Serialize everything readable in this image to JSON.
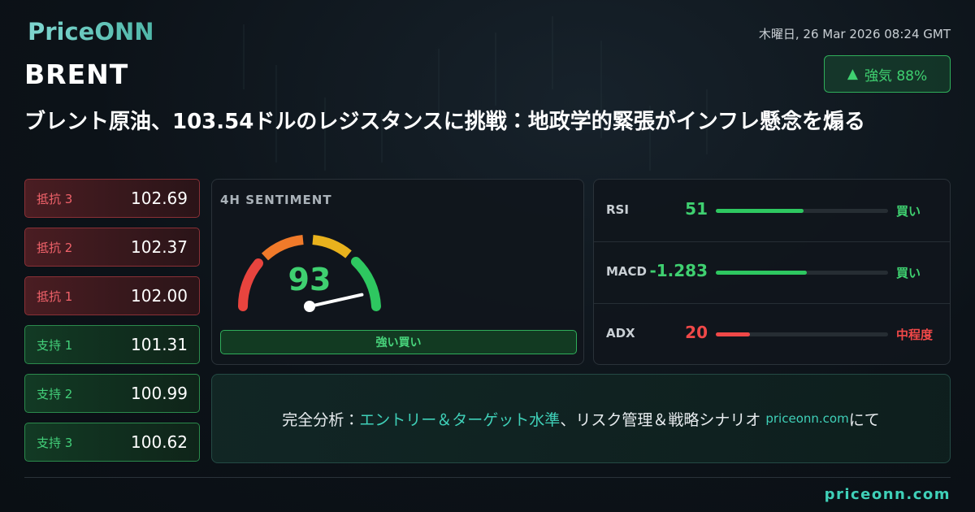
{
  "header": {
    "logo": "PriceONN",
    "date": "木曜日, 26 Mar 2026 08:24 GMT",
    "symbol": "BRENT",
    "badge": "強気 88%"
  },
  "headline": "ブレント原油、103.54ドルのレジスタンスに挑戦：地政学的緊張がインフレ懸念を煽る",
  "levels": [
    {
      "label": "抵抗 3",
      "value": "102.69",
      "kind": "resistance"
    },
    {
      "label": "抵抗 2",
      "value": "102.37",
      "kind": "resistance"
    },
    {
      "label": "抵抗 1",
      "value": "102.00",
      "kind": "resistance"
    },
    {
      "label": "支持 1",
      "value": "101.31",
      "kind": "support"
    },
    {
      "label": "支持 2",
      "value": "100.99",
      "kind": "support"
    },
    {
      "label": "支持 3",
      "value": "100.62",
      "kind": "support"
    }
  ],
  "sentiment": {
    "title": "4H SENTIMENT",
    "value": 93,
    "min": 0,
    "max": 100,
    "verdict": "強い買い"
  },
  "indicators": [
    {
      "name": "RSI",
      "value": 51,
      "signal": "買い",
      "tone": "buy"
    },
    {
      "name": "MACD",
      "value": -1.283,
      "signal": "買い",
      "tone": "buy"
    },
    {
      "name": "ADX",
      "value": 20,
      "signal": "中程度",
      "tone": "neutral"
    }
  ],
  "cta": {
    "parts": [
      "完全分析：",
      "エントリー＆ターゲット水準",
      "、リスク管理＆戦略シナリオ ",
      "priceonn.com",
      "にて"
    ]
  },
  "footer": "priceonn.com"
}
